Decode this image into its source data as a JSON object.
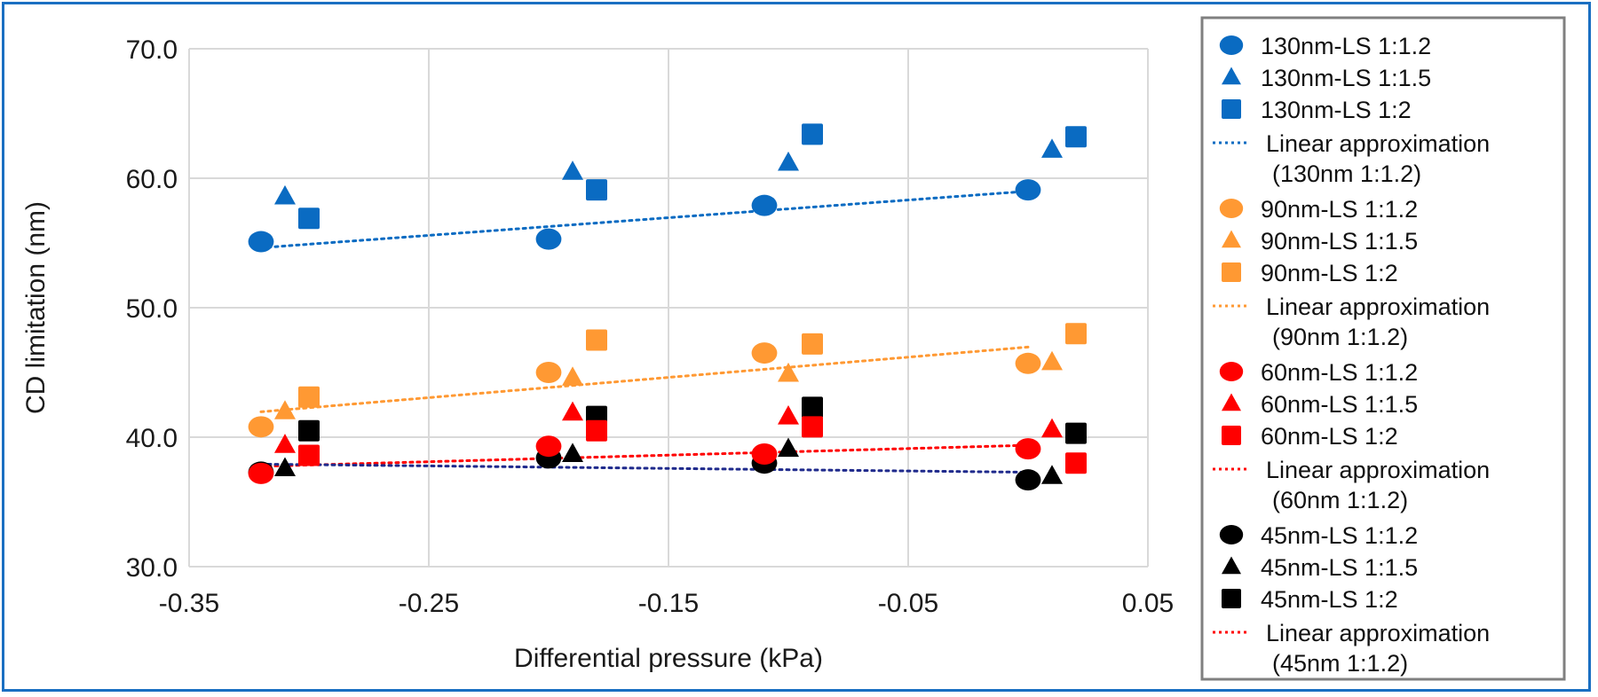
{
  "chart_data": {
    "type": "scatter",
    "title": "",
    "xlabel": "Differential pressure (kPa)",
    "ylabel": "CD limitation (nm)",
    "xlim": [
      -0.35,
      0.05
    ],
    "ylim": [
      30,
      70
    ],
    "xticks": [
      "-0.35",
      "-0.25",
      "-0.15",
      "-0.05",
      "0.05"
    ],
    "yticks": [
      "30.0",
      "40.0",
      "50.0",
      "60.0",
      "70.0"
    ],
    "grid": true,
    "legend_position": "right",
    "series": [
      {
        "name": "130nm-LS 1:1.2",
        "marker": "circle",
        "color": "#0a6bc2",
        "x": [
          -0.32,
          -0.2,
          -0.11,
          0.0
        ],
        "y": [
          55.1,
          55.3,
          57.9,
          59.1
        ]
      },
      {
        "name": "130nm-LS 1:1.5",
        "marker": "triangle",
        "color": "#0a6bc2",
        "x": [
          -0.31,
          -0.19,
          -0.1,
          0.01
        ],
        "y": [
          58.6,
          60.5,
          61.2,
          62.2
        ]
      },
      {
        "name": "130nm-LS 1:2",
        "marker": "square",
        "color": "#0a6bc2",
        "x": [
          -0.3,
          -0.18,
          -0.09,
          0.02
        ],
        "y": [
          56.9,
          59.1,
          63.4,
          63.2
        ]
      },
      {
        "name": "90nm-LS 1:1.2",
        "marker": "circle",
        "color": "#ff9933",
        "x": [
          -0.32,
          -0.2,
          -0.11,
          0.0
        ],
        "y": [
          40.8,
          45.0,
          46.5,
          45.7
        ]
      },
      {
        "name": "90nm-LS 1:1.5",
        "marker": "triangle",
        "color": "#ff9933",
        "x": [
          -0.31,
          -0.19,
          -0.1,
          0.01
        ],
        "y": [
          42.0,
          44.6,
          44.9,
          45.8
        ]
      },
      {
        "name": "90nm-LS 1:2",
        "marker": "square",
        "color": "#ff9933",
        "x": [
          -0.3,
          -0.18,
          -0.09,
          0.02
        ],
        "y": [
          43.1,
          47.5,
          47.2,
          48.0
        ]
      },
      {
        "name": "45nm-LS 1:1.2",
        "marker": "circle",
        "color": "#000000",
        "x": [
          -0.32,
          -0.2,
          -0.11,
          0.0
        ],
        "y": [
          37.3,
          38.4,
          38.0,
          36.7
        ]
      },
      {
        "name": "45nm-LS 1:1.5",
        "marker": "triangle",
        "color": "#000000",
        "x": [
          -0.31,
          -0.19,
          -0.1,
          0.01
        ],
        "y": [
          37.6,
          38.7,
          39.1,
          37.0
        ]
      },
      {
        "name": "45nm-LS 1:2",
        "marker": "square",
        "color": "#000000",
        "x": [
          -0.3,
          -0.18,
          -0.09,
          0.02
        ],
        "y": [
          40.5,
          41.6,
          42.3,
          40.3
        ]
      },
      {
        "name": "60nm-LS 1:1.2",
        "marker": "circle",
        "color": "#ff0000",
        "x": [
          -0.32,
          -0.2,
          -0.11,
          0.0
        ],
        "y": [
          37.2,
          39.3,
          38.7,
          39.1
        ]
      },
      {
        "name": "60nm-LS 1:1.5",
        "marker": "triangle",
        "color": "#ff0000",
        "x": [
          -0.31,
          -0.19,
          -0.1,
          0.01
        ],
        "y": [
          39.4,
          41.9,
          41.6,
          40.6
        ]
      },
      {
        "name": "60nm-LS 1:2",
        "marker": "square",
        "color": "#ff0000",
        "x": [
          -0.3,
          -0.18,
          -0.09,
          0.02
        ],
        "y": [
          38.6,
          40.5,
          40.8,
          38.0
        ]
      }
    ],
    "trendlines": [
      {
        "name": "Linear approximation (130nm 1:1.2)",
        "of": "130nm-LS 1:1.2",
        "color": "#0a6bc2",
        "legend_color": "#0a6bc2"
      },
      {
        "name": "Linear approximation (90nm 1:1.2)",
        "of": "90nm-LS 1:1.2",
        "color": "#ff9933",
        "legend_color": "#ff9933"
      },
      {
        "name": "Linear approximation (60nm 1:1.2)",
        "of": "60nm-LS 1:1.2",
        "color": "#ff0000",
        "legend_color": "#ff0000"
      },
      {
        "name": "Linear approximation (45nm 1:1.2)",
        "of": "45nm-LS 1:1.2",
        "color": "#1f2a8c",
        "legend_color": "#ff0000"
      }
    ],
    "legend": [
      {
        "type": "marker",
        "marker": "circle",
        "color": "#0a6bc2",
        "label": "130nm-LS 1:1.2"
      },
      {
        "type": "marker",
        "marker": "triangle",
        "color": "#0a6bc2",
        "label": "130nm-LS 1:1.5"
      },
      {
        "type": "marker",
        "marker": "square",
        "color": "#0a6bc2",
        "label": "130nm-LS 1:2"
      },
      {
        "type": "line",
        "color": "#0a6bc2",
        "label": "Linear approximation",
        "label2": "(130nm 1:1.2)"
      },
      {
        "type": "marker",
        "marker": "circle",
        "color": "#ff9933",
        "label": "90nm-LS 1:1.2"
      },
      {
        "type": "marker",
        "marker": "triangle",
        "color": "#ff9933",
        "label": "90nm-LS 1:1.5"
      },
      {
        "type": "marker",
        "marker": "square",
        "color": "#ff9933",
        "label": "90nm-LS 1:2"
      },
      {
        "type": "line",
        "color": "#ff9933",
        "label": "Linear approximation",
        "label2": "(90nm 1:1.2)"
      },
      {
        "type": "marker",
        "marker": "circle",
        "color": "#ff0000",
        "label": "60nm-LS 1:1.2"
      },
      {
        "type": "marker",
        "marker": "triangle",
        "color": "#ff0000",
        "label": "60nm-LS 1:1.5"
      },
      {
        "type": "marker",
        "marker": "square",
        "color": "#ff0000",
        "label": "60nm-LS 1:2"
      },
      {
        "type": "line",
        "color": "#ff0000",
        "label": "Linear approximation",
        "label2": "(60nm 1:1.2)"
      },
      {
        "type": "marker",
        "marker": "circle",
        "color": "#000000",
        "label": "45nm-LS 1:1.2"
      },
      {
        "type": "marker",
        "marker": "triangle",
        "color": "#000000",
        "label": "45nm-LS 1:1.5"
      },
      {
        "type": "marker",
        "marker": "square",
        "color": "#000000",
        "label": "45nm-LS 1:2"
      },
      {
        "type": "line",
        "color": "#ff0000",
        "label": "Linear approximation",
        "label2": "(45nm 1:1.2)"
      }
    ]
  }
}
